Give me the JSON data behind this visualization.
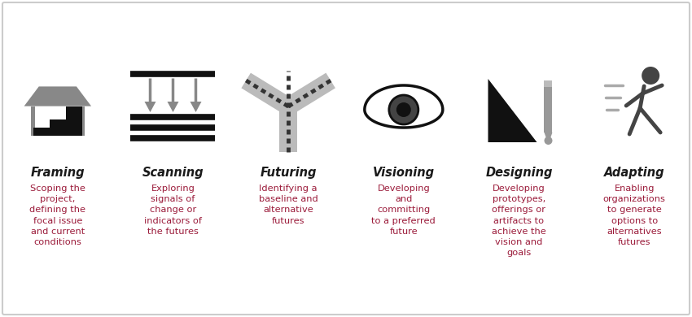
{
  "stages": [
    {
      "title": "Framing",
      "description": "Scoping the\nproject,\ndefining the\nfocal issue\nand current\nconditions",
      "icon": "framing"
    },
    {
      "title": "Scanning",
      "description": "Exploring\nsignals of\nchange or\nindicators of\nthe futures",
      "icon": "scanning"
    },
    {
      "title": "Futuring",
      "description": "Identifying a\nbaseline and\nalternative\nfutures",
      "icon": "futuring"
    },
    {
      "title": "Visioning",
      "description": "Developing\nand\ncommitting\nto a preferred\nfuture",
      "icon": "visioning"
    },
    {
      "title": "Designing",
      "description": "Developing\nprototypes,\nofferings or\nartifacts to\nachieve the\nvision and\ngoals",
      "icon": "designing"
    },
    {
      "title": "Adapting",
      "description": "Enabling\norganizations\nto generate\noptions to\nalternatives\nfutures",
      "icon": "adapting"
    }
  ],
  "title_color": "#1a1a1a",
  "desc_color": "#9b1b3a",
  "icon_dark": "#111111",
  "icon_mid": "#555555",
  "icon_light": "#bbbbbb",
  "bg_color": "#ffffff",
  "border_color": "#cccccc",
  "title_fontsize": 10.5,
  "desc_fontsize": 8.2
}
